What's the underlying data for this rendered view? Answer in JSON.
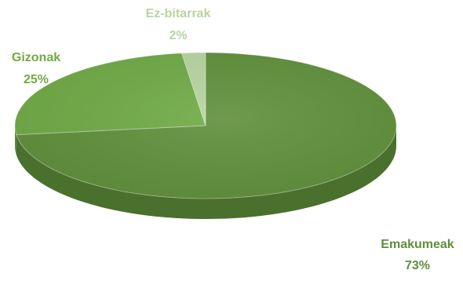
{
  "chart_data": {
    "type": "pie",
    "style": "3d",
    "legend": "none",
    "slices": [
      {
        "label": "Emakumeak",
        "value": 73,
        "value_label": "73%",
        "color": "#5f8f3a"
      },
      {
        "label": "Gizonak",
        "value": 25,
        "value_label": "25%",
        "color": "#6faa45"
      },
      {
        "label": "Ez-bitarrak",
        "value": 2,
        "value_label": "2%",
        "color": "#b7d5a0"
      }
    ]
  }
}
